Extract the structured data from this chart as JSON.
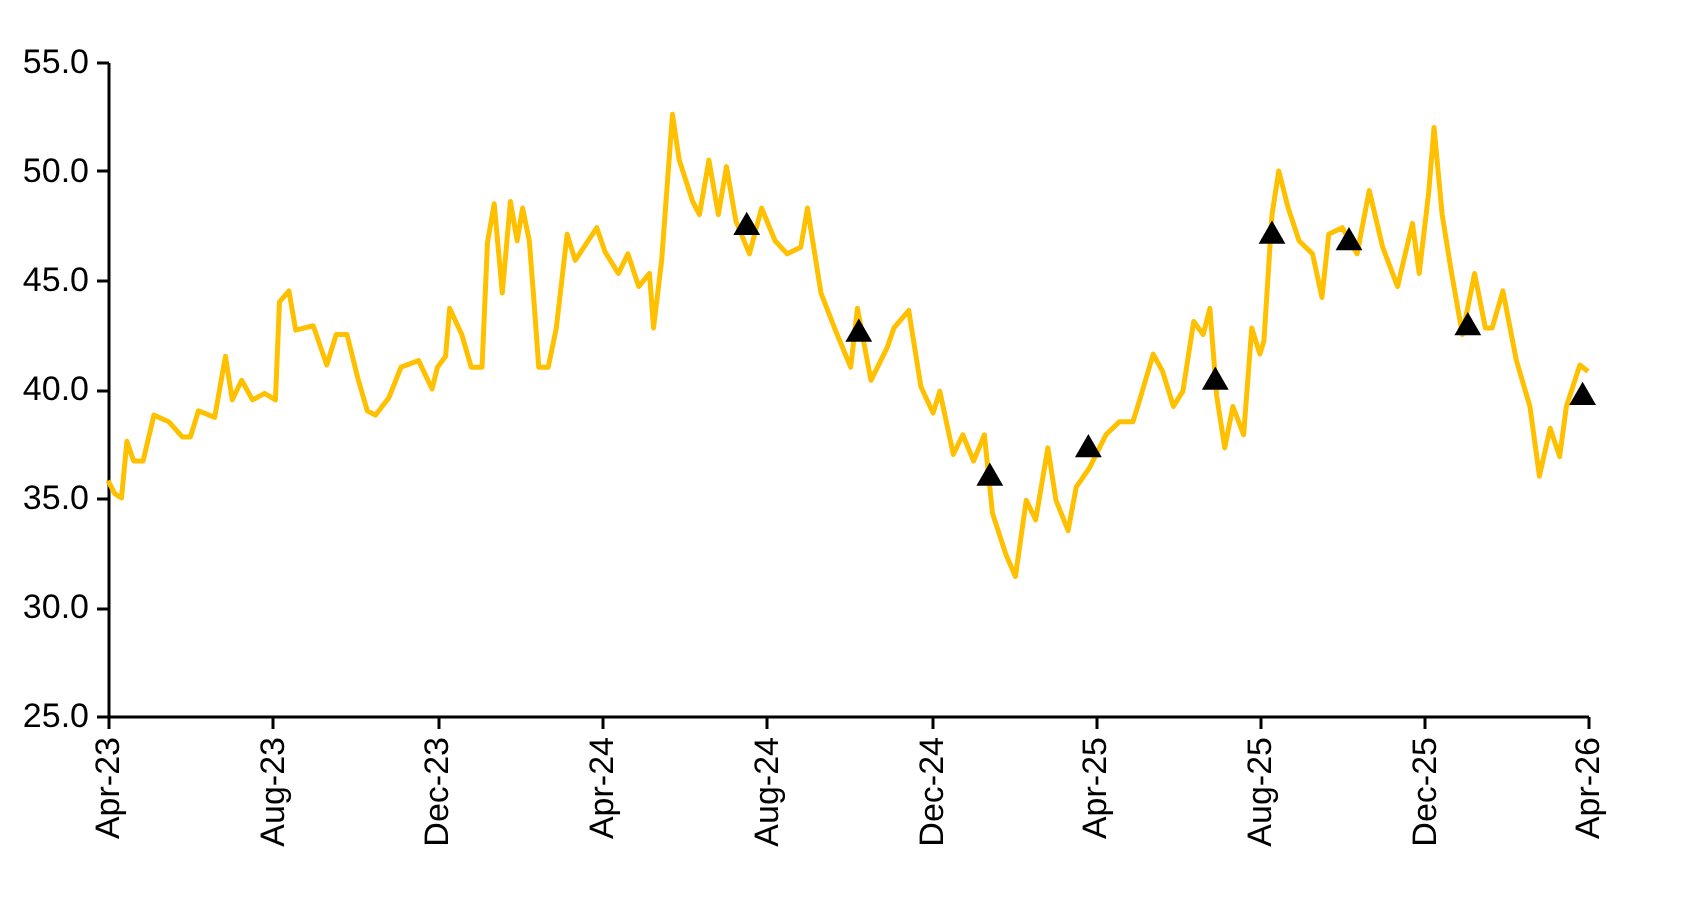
{
  "chart_data": {
    "type": "line",
    "xlim": [
      "2023-04-01",
      "2026-04-01"
    ],
    "xticks": [
      {
        "value": "2023-04-01",
        "label": "Apr-23"
      },
      {
        "value": "2023-08-01",
        "label": "Aug-23"
      },
      {
        "value": "2023-12-01",
        "label": "Dec-23"
      },
      {
        "value": "2024-04-01",
        "label": "Apr-24"
      },
      {
        "value": "2024-08-01",
        "label": "Aug-24"
      },
      {
        "value": "2024-12-01",
        "label": "Dec-24"
      },
      {
        "value": "2025-04-01",
        "label": "Apr-25"
      },
      {
        "value": "2025-08-01",
        "label": "Aug-25"
      },
      {
        "value": "2025-12-01",
        "label": "Dec-25"
      },
      {
        "value": "2026-04-01",
        "label": "Apr-26"
      }
    ],
    "ylim": [
      25,
      55
    ],
    "yticks": [
      {
        "value": 25,
        "label": "25.0"
      },
      {
        "value": 30,
        "label": "30.0"
      },
      {
        "value": 35,
        "label": "35.0"
      },
      {
        "value": 40,
        "label": "40.0"
      },
      {
        "value": 45,
        "label": "45.0"
      },
      {
        "value": 50,
        "label": "50.0"
      },
      {
        "value": 55,
        "label": "55.0"
      }
    ],
    "grid": false,
    "legend": false,
    "series": [
      {
        "type": "line",
        "color": "#ffc000",
        "marker": "none",
        "line_style": "solid",
        "x": [
          "2023-04-01",
          "2023-04-06",
          "2023-04-11",
          "2023-04-15",
          "2023-04-20",
          "2023-04-27",
          "2023-05-05",
          "2023-05-16",
          "2023-05-26",
          "2023-06-01",
          "2023-06-07",
          "2023-06-19",
          "2023-06-27",
          "2023-07-02",
          "2023-07-09",
          "2023-07-17",
          "2023-07-26",
          "2023-08-03",
          "2023-08-06",
          "2023-08-13",
          "2023-08-18",
          "2023-08-31",
          "2023-09-10",
          "2023-09-17",
          "2023-09-25",
          "2023-10-03",
          "2023-10-10",
          "2023-10-16",
          "2023-10-26",
          "2023-11-04",
          "2023-11-17",
          "2023-11-27",
          "2023-12-01",
          "2023-12-07",
          "2023-12-10",
          "2023-12-19",
          "2023-12-26",
          "2024-01-03",
          "2024-01-07",
          "2024-01-12",
          "2024-01-18",
          "2024-01-24",
          "2024-01-29",
          "2024-02-02",
          "2024-02-07",
          "2024-02-10",
          "2024-02-14",
          "2024-02-21",
          "2024-02-27",
          "2024-03-06",
          "2024-03-12",
          "2024-03-28",
          "2024-04-03",
          "2024-04-13",
          "2024-04-20",
          "2024-04-28",
          "2024-05-06",
          "2024-05-09",
          "2024-05-15",
          "2024-05-23",
          "2024-05-28",
          "2024-06-07",
          "2024-06-12",
          "2024-06-19",
          "2024-06-26",
          "2024-07-02",
          "2024-07-09",
          "2024-07-19",
          "2024-07-28",
          "2024-08-07",
          "2024-08-16",
          "2024-08-26",
          "2024-08-31",
          "2024-09-10",
          "2024-09-20",
          "2024-10-02",
          "2024-10-07",
          "2024-10-17",
          "2024-10-29",
          "2024-11-03",
          "2024-11-14",
          "2024-11-23",
          "2024-12-02",
          "2024-12-07",
          "2024-12-17",
          "2024-12-24",
          "2025-01-01",
          "2025-01-09",
          "2025-01-15",
          "2025-01-25",
          "2025-02-01",
          "2025-02-09",
          "2025-02-16",
          "2025-02-25",
          "2025-03-03",
          "2025-03-12",
          "2025-03-18",
          "2025-03-28",
          "2025-04-09",
          "2025-04-19",
          "2025-04-29",
          "2025-05-04",
          "2025-05-14",
          "2025-05-21",
          "2025-05-29",
          "2025-06-05",
          "2025-06-13",
          "2025-06-20",
          "2025-06-25",
          "2025-06-30",
          "2025-07-06",
          "2025-07-12",
          "2025-07-20",
          "2025-07-26",
          "2025-08-01",
          "2025-08-04",
          "2025-08-10",
          "2025-08-15",
          "2025-08-22",
          "2025-08-30",
          "2025-09-09",
          "2025-09-16",
          "2025-09-21",
          "2025-10-01",
          "2025-10-12",
          "2025-10-21",
          "2025-10-31",
          "2025-11-11",
          "2025-11-22",
          "2025-11-27",
          "2025-12-04",
          "2025-12-08",
          "2025-12-14",
          "2025-12-21",
          "2025-12-29",
          "2026-01-07",
          "2026-01-15",
          "2026-01-20",
          "2026-01-28",
          "2026-02-07",
          "2026-02-17",
          "2026-02-24",
          "2026-03-04",
          "2026-03-11",
          "2026-03-16",
          "2026-03-26",
          "2026-04-01"
        ],
        "values": [
          35.8,
          35.2,
          35.0,
          37.6,
          36.7,
          36.7,
          38.8,
          38.5,
          37.8,
          37.8,
          39.0,
          38.7,
          41.5,
          39.5,
          40.4,
          39.5,
          39.8,
          39.5,
          44.0,
          44.5,
          42.7,
          42.9,
          41.1,
          42.5,
          42.5,
          40.5,
          39.0,
          38.8,
          39.6,
          41.0,
          41.3,
          40.0,
          41.0,
          41.5,
          43.7,
          42.5,
          41.0,
          41.0,
          46.7,
          48.5,
          44.4,
          48.6,
          46.8,
          48.3,
          46.8,
          44.4,
          41.0,
          41.0,
          42.8,
          47.1,
          45.9,
          47.4,
          46.3,
          45.3,
          46.2,
          44.7,
          45.3,
          42.8,
          45.9,
          52.6,
          50.5,
          48.6,
          48.0,
          50.5,
          48.0,
          50.2,
          47.7,
          46.2,
          48.3,
          46.8,
          46.2,
          46.5,
          48.3,
          44.4,
          42.8,
          41.0,
          43.7,
          40.4,
          41.9,
          42.8,
          43.6,
          40.1,
          38.9,
          39.9,
          37.0,
          37.9,
          36.7,
          37.9,
          34.3,
          32.4,
          31.4,
          34.9,
          34.0,
          37.3,
          34.9,
          33.5,
          35.5,
          36.4,
          37.9,
          38.5,
          38.5,
          39.5,
          41.6,
          40.8,
          39.2,
          39.9,
          43.1,
          42.5,
          43.7,
          39.7,
          37.3,
          39.2,
          37.9,
          42.8,
          41.6,
          42.2,
          48.0,
          50.0,
          48.3,
          46.8,
          46.2,
          44.2,
          47.1,
          47.4,
          46.2,
          49.1,
          46.5,
          44.7,
          47.6,
          45.3,
          49.0,
          52.0,
          48.0,
          45.3,
          42.5,
          45.3,
          42.8,
          42.8,
          44.5,
          41.3,
          39.2,
          36.0,
          38.2,
          36.9,
          39.2,
          41.1,
          40.8
        ]
      },
      {
        "type": "scatter",
        "color": "#000000",
        "marker": "triangle",
        "x": [
          "2024-07-17",
          "2024-10-08",
          "2025-01-13",
          "2025-03-27",
          "2025-06-29",
          "2025-08-10",
          "2025-10-06",
          "2026-01-02",
          "2026-03-28"
        ],
        "values": [
          47.6,
          42.7,
          36.1,
          37.4,
          40.5,
          47.2,
          46.9,
          43.0,
          39.8
        ]
      }
    ]
  }
}
